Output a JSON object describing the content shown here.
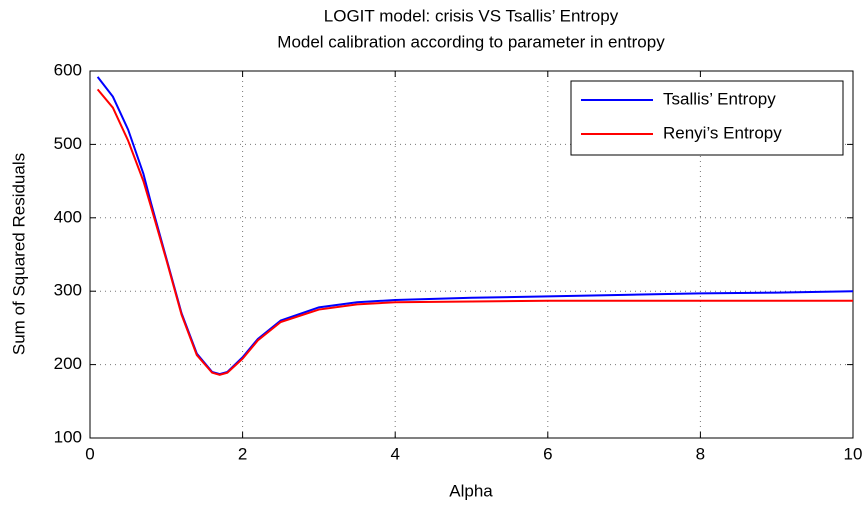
{
  "chart_data": {
    "type": "line",
    "title": "LOGIT model: crisis VS Tsallis’ Entropy",
    "subtitle": "Model calibration according to parameter in entropy",
    "x_label": "Alpha",
    "y_label": "Sum of Squared Residuals",
    "x": [
      0.1,
      0.3,
      0.5,
      0.7,
      0.8,
      1.0,
      1.2,
      1.4,
      1.6,
      1.7,
      1.8,
      2.0,
      2.2,
      2.5,
      3,
      3.5,
      4,
      5,
      6,
      7,
      8,
      9,
      10
    ],
    "series": [
      {
        "name": "Tsallis’ Entropy",
        "color": "#0000ff",
        "values": [
          592,
          565,
          520,
          460,
          420,
          345,
          270,
          215,
          190,
          187,
          190,
          210,
          235,
          260,
          278,
          285,
          288,
          291,
          293,
          295,
          297,
          298,
          300
        ]
      },
      {
        "name": "Renyi’s Entropy",
        "color": "#ff0000",
        "values": [
          575,
          550,
          505,
          450,
          415,
          343,
          268,
          213,
          189,
          186,
          189,
          208,
          233,
          258,
          275,
          282,
          285,
          286,
          287,
          287,
          287,
          287,
          287
        ]
      }
    ],
    "xlim": [
      0,
      10
    ],
    "xticks": [
      0,
      2,
      4,
      6,
      8,
      10
    ],
    "ylim": [
      100,
      600
    ],
    "yticks": [
      100,
      200,
      300,
      400,
      500,
      600
    ],
    "grid": true,
    "legend": "upper right"
  }
}
